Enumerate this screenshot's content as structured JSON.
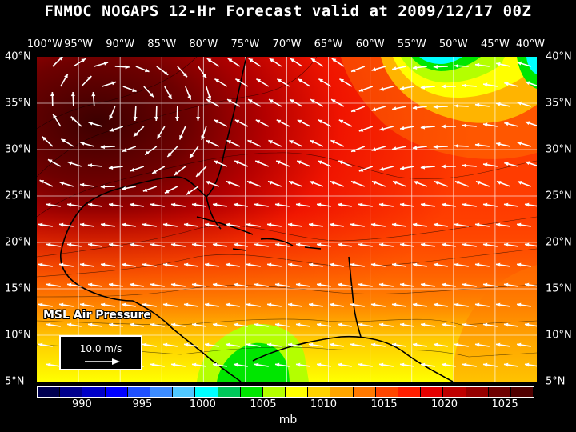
{
  "title": "FNMOC NOGAPS 12-Hr Forecast valid at 2009/12/17 00Z",
  "lon_labels": [
    "100°W",
    "95°W",
    "90°W",
    "85°W",
    "80°W",
    "75°W",
    "70°W",
    "65°W",
    "60°W",
    "55°W",
    "50°W",
    "45°W",
    "40°W"
  ],
  "lat_labels": [
    "40°N",
    "35°N",
    "30°N",
    "25°N",
    "20°N",
    "15°N",
    "10°N",
    "5°N"
  ],
  "inset_title": "MSL Air Pressure",
  "scale_label": "10.0 m/s",
  "colorbar": {
    "colors": [
      "#000050",
      "#00008c",
      "#0000c8",
      "#0000ff",
      "#1e50ff",
      "#3c8cff",
      "#50c8ff",
      "#00ffff",
      "#00c85a",
      "#00e600",
      "#b4ff00",
      "#ffff00",
      "#ffd200",
      "#ffa500",
      "#ff7800",
      "#ff4600",
      "#ff1e00",
      "#e60000",
      "#be0000",
      "#960000",
      "#6e0000",
      "#500000"
    ],
    "labels": [
      "990",
      "995",
      "1000",
      "1005",
      "1010",
      "1015",
      "1020",
      "1025"
    ]
  },
  "unit": "mb",
  "colors": {
    "background": "#000000",
    "high_pressure": "#5a0000",
    "mid_pressure": "#ff2a00",
    "low_pressure": "#ffff00",
    "wind_vectors": "#ffffff"
  }
}
